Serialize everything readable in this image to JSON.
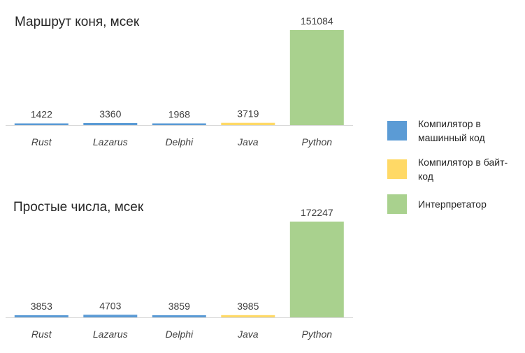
{
  "colors": {
    "machine": "#5b9bd5",
    "bytecode": "#ffd966",
    "interpreter": "#a9d18e",
    "axis": "#d9d9d9"
  },
  "legend": [
    {
      "name": "Компилятор в машинный код",
      "color": "#5b9bd5",
      "key": "machine"
    },
    {
      "name": "Компилятор в байт-код",
      "color": "#ffd966",
      "key": "bytecode"
    },
    {
      "name": "Интерпретатор",
      "color": "#a9d18e",
      "key": "interpreter"
    }
  ],
  "chart_data": [
    {
      "type": "bar",
      "title": "Маршрут коня, мсек",
      "categories": [
        "Rust",
        "Lazarus",
        "Delphi",
        "Java",
        "Python"
      ],
      "values": [
        1422,
        3360,
        1968,
        3719,
        151084
      ],
      "value_labels": [
        "1422",
        "3360",
        "1968",
        "3719",
        "151084"
      ],
      "bar_types": [
        "machine",
        "machine",
        "machine",
        "bytecode",
        "interpreter"
      ],
      "ylim": [
        0,
        151084
      ],
      "grid": false,
      "legend": "right"
    },
    {
      "type": "bar",
      "title": "Простые числа, мсек",
      "categories": [
        "Rust",
        "Lazarus",
        "Delphi",
        "Java",
        "Python"
      ],
      "values": [
        3853,
        4703,
        3859,
        3985,
        172247
      ],
      "value_labels": [
        "3853",
        "4703",
        "3859",
        "3985",
        "172247"
      ],
      "bar_types": [
        "machine",
        "machine",
        "machine",
        "bytecode",
        "interpreter"
      ],
      "ylim": [
        0,
        172247
      ],
      "grid": false,
      "legend": "right"
    }
  ]
}
